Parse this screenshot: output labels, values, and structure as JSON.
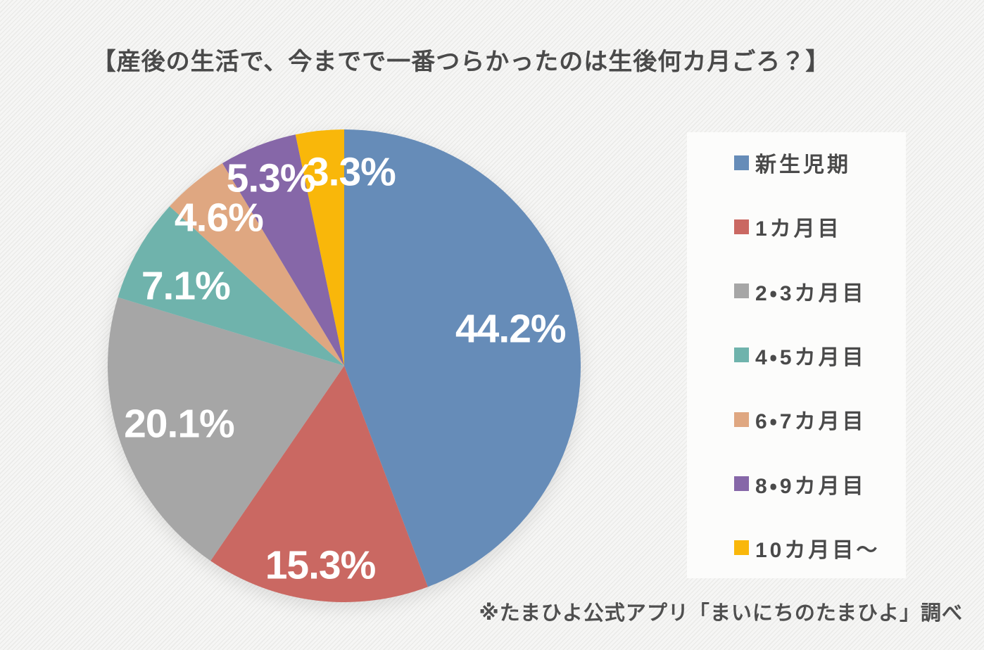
{
  "title": "【産後の生活で、今までで一番つらかったのは生後何カ月ごろ？】",
  "source_note": "※たまひよ公式アプリ「まいにちのたまひよ」調べ",
  "chart_data": {
    "type": "pie",
    "title": "産後の生活で、今までで一番つらかったのは生後何カ月ごろ？",
    "start_angle_deg": 0,
    "direction": "clockwise",
    "legend_position": "right",
    "slices": [
      {
        "label": "新生児期",
        "value": 44.2,
        "pct_label": "44.2%",
        "color": "#668cb8",
        "label_r": 0.72,
        "label_angle_offset": -2
      },
      {
        "label": "1カ月目",
        "value": 15.3,
        "pct_label": "15.3%",
        "color": "#ca6862",
        "label_r": 0.85,
        "label_angle_offset": 0
      },
      {
        "label": "2・3カ月目",
        "value": 20.1,
        "pct_label": "20.1%",
        "color": "#a6a6a6",
        "label_r": 0.74,
        "label_angle_offset": 0
      },
      {
        "label": "4・5カ月目",
        "value": 7.1,
        "pct_label": "7.1%",
        "color": "#6fb3ac",
        "label_r": 0.75,
        "label_angle_offset": -3
      },
      {
        "label": "6・7カ月目",
        "value": 4.6,
        "pct_label": "4.6%",
        "color": "#dfa781",
        "label_r": 0.82,
        "label_angle_offset": -1
      },
      {
        "label": "8・9カ月目",
        "value": 5.3,
        "pct_label": "5.3%",
        "color": "#8667a8",
        "label_r": 0.85,
        "label_angle_offset": 0
      },
      {
        "label": "10カ月目〜",
        "value": 3.3,
        "pct_label": "3.3%",
        "color": "#f9b70a",
        "label_r": 0.82,
        "label_angle_offset": 8
      }
    ]
  }
}
